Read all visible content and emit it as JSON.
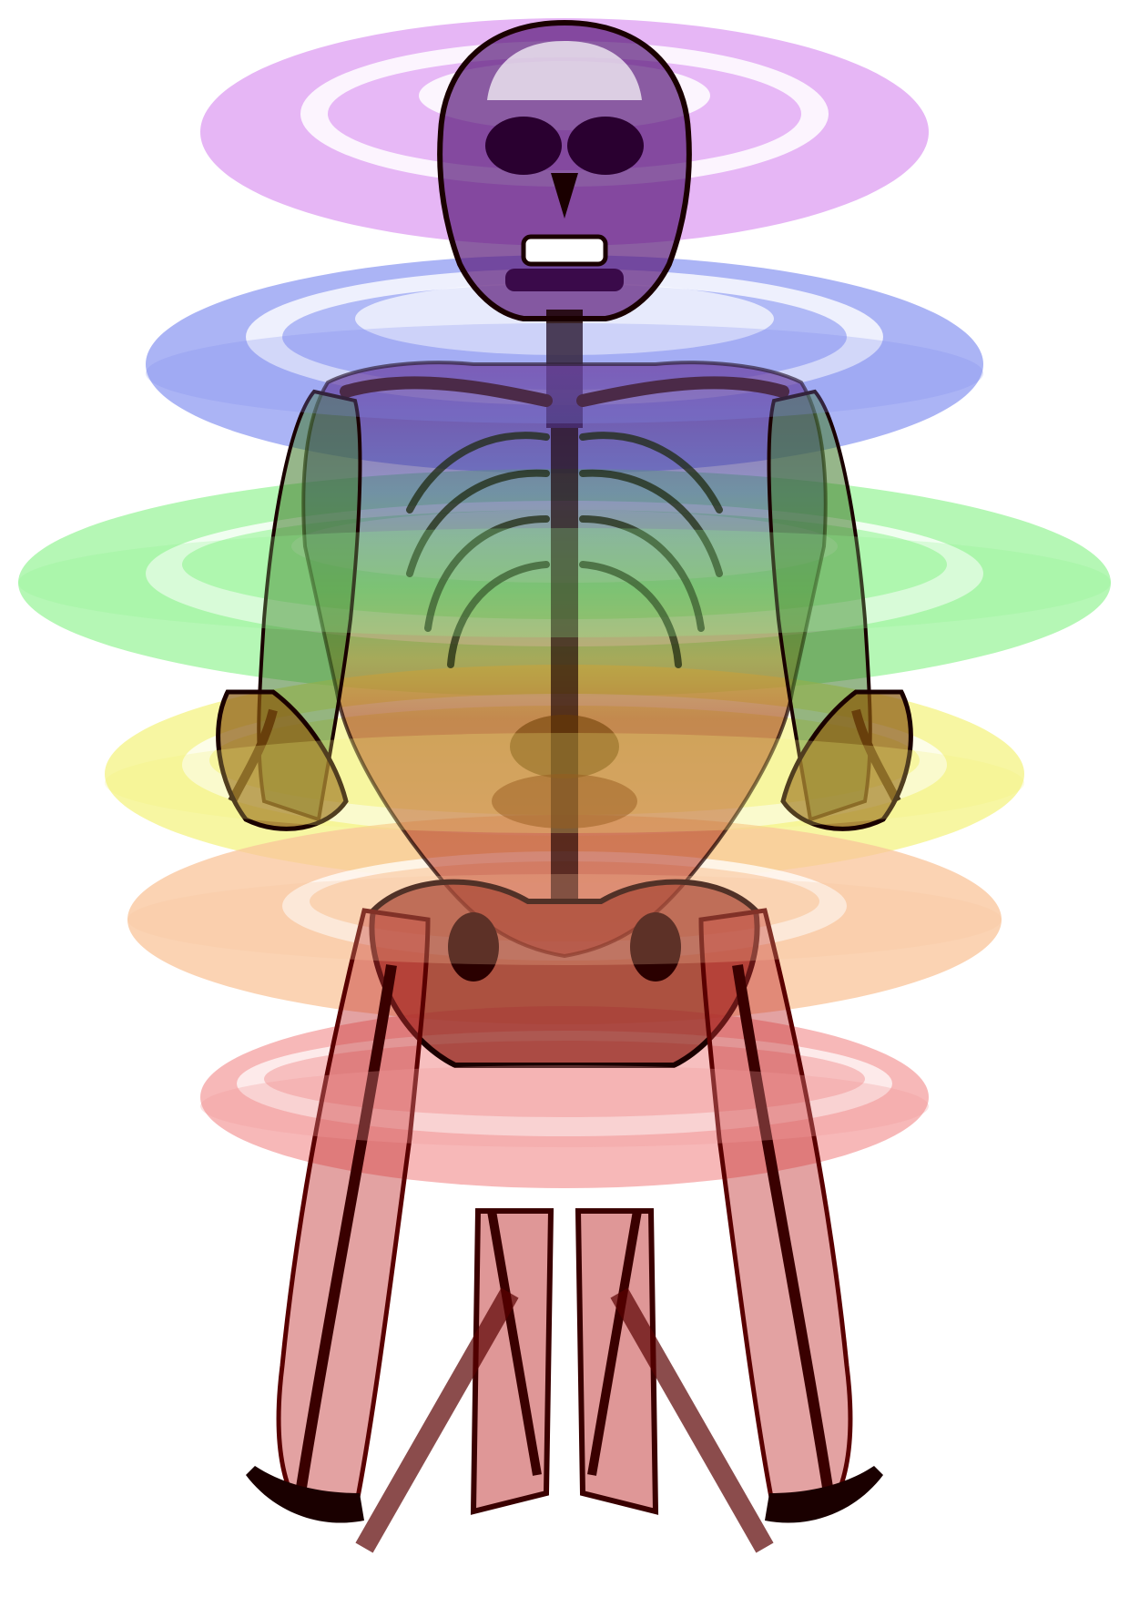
{
  "artwork": {
    "kind": "symmetric-skeleton-chakra-illustration",
    "background": "#ffffff",
    "bone_outline": "#1a0000",
    "chakra_colors": {
      "crown": "#d98ff0",
      "throat": "#7e8cf0",
      "heart": "#8ef28e",
      "solar_plexus": "#f4f27a",
      "sacral": "#f9c49a",
      "root": "#f39a9a"
    },
    "body_tints": {
      "head": "#5a1a7a",
      "upper_torso": "#3c3f8f",
      "chest": "#3f7a2a",
      "abdomen": "#9a6a10",
      "pelvis": "#8a2a10",
      "legs": "#c03030"
    }
  }
}
